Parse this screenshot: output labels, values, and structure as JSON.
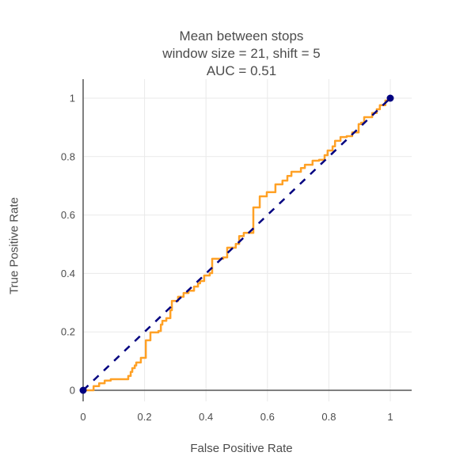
{
  "chart_data": {
    "type": "line",
    "title_lines": [
      "Mean between stops",
      "window size = 21, shift = 5",
      "AUC = 0.51"
    ],
    "xlabel": "False Positive Rate",
    "ylabel": "True Positive Rate",
    "auc": 0.51,
    "xlim": [
      -0.01,
      1.07
    ],
    "ylim": [
      -0.04,
      1.07
    ],
    "grid": true,
    "legend_position": "none",
    "x_ticks": {
      "values": [
        0,
        0.2,
        0.4,
        0.6,
        0.8,
        1
      ],
      "labels": [
        "0",
        "0.2",
        "0.4",
        "0.6",
        "0.8",
        "1"
      ]
    },
    "y_ticks": {
      "values": [
        0,
        0.2,
        0.4,
        0.6,
        0.8,
        1
      ],
      "labels": [
        "0",
        "0.2",
        "0.4",
        "0.6",
        "0.8",
        "1"
      ]
    },
    "series": [
      {
        "name": "ROC curve",
        "type": "step-line",
        "color": "#ffa126",
        "points": [
          [
            0,
            0
          ],
          [
            0.034,
            0.003
          ],
          [
            0.034,
            0.014
          ],
          [
            0.052,
            0.014
          ],
          [
            0.052,
            0.024
          ],
          [
            0.07,
            0.024
          ],
          [
            0.07,
            0.033
          ],
          [
            0.09,
            0.033
          ],
          [
            0.09,
            0.038
          ],
          [
            0.147,
            0.038
          ],
          [
            0.147,
            0.049
          ],
          [
            0.155,
            0.063
          ],
          [
            0.16,
            0.076
          ],
          [
            0.168,
            0.085
          ],
          [
            0.173,
            0.095
          ],
          [
            0.188,
            0.111
          ],
          [
            0.204,
            0.111
          ],
          [
            0.204,
            0.171
          ],
          [
            0.219,
            0.171
          ],
          [
            0.219,
            0.198
          ],
          [
            0.245,
            0.203
          ],
          [
            0.253,
            0.225
          ],
          [
            0.258,
            0.238
          ],
          [
            0.271,
            0.247
          ],
          [
            0.284,
            0.274
          ],
          [
            0.289,
            0.306
          ],
          [
            0.309,
            0.306
          ],
          [
            0.309,
            0.32
          ],
          [
            0.327,
            0.333
          ],
          [
            0.343,
            0.341
          ],
          [
            0.361,
            0.355
          ],
          [
            0.374,
            0.366
          ],
          [
            0.381,
            0.374
          ],
          [
            0.394,
            0.393
          ],
          [
            0.412,
            0.401
          ],
          [
            0.42,
            0.407
          ],
          [
            0.42,
            0.45
          ],
          [
            0.456,
            0.455
          ],
          [
            0.469,
            0.488
          ],
          [
            0.497,
            0.501
          ],
          [
            0.508,
            0.528
          ],
          [
            0.523,
            0.539
          ],
          [
            0.554,
            0.545
          ],
          [
            0.554,
            0.626
          ],
          [
            0.575,
            0.626
          ],
          [
            0.575,
            0.664
          ],
          [
            0.598,
            0.664
          ],
          [
            0.598,
            0.678
          ],
          [
            0.626,
            0.678
          ],
          [
            0.626,
            0.705
          ],
          [
            0.649,
            0.705
          ],
          [
            0.649,
            0.718
          ],
          [
            0.665,
            0.718
          ],
          [
            0.665,
            0.734
          ],
          [
            0.678,
            0.734
          ],
          [
            0.678,
            0.748
          ],
          [
            0.709,
            0.748
          ],
          [
            0.709,
            0.761
          ],
          [
            0.722,
            0.761
          ],
          [
            0.722,
            0.772
          ],
          [
            0.747,
            0.772
          ],
          [
            0.747,
            0.786
          ],
          [
            0.768,
            0.789
          ],
          [
            0.786,
            0.805
          ],
          [
            0.796,
            0.821
          ],
          [
            0.812,
            0.835
          ],
          [
            0.82,
            0.854
          ],
          [
            0.838,
            0.867
          ],
          [
            0.858,
            0.87
          ],
          [
            0.876,
            0.87
          ],
          [
            0.876,
            0.883
          ],
          [
            0.894,
            0.883
          ],
          [
            0.897,
            0.911
          ],
          [
            0.905,
            0.916
          ],
          [
            0.915,
            0.935
          ],
          [
            0.941,
            0.938
          ],
          [
            0.941,
            0.949
          ],
          [
            0.956,
            0.962
          ],
          [
            0.966,
            0.976
          ],
          [
            0.984,
            0.992
          ],
          [
            1,
            1
          ]
        ]
      },
      {
        "name": "Chance diagonal",
        "type": "dashed-line",
        "color": "#000080",
        "points": [
          [
            0,
            0
          ],
          [
            1,
            1
          ]
        ]
      },
      {
        "name": "Endpoint markers",
        "type": "scatter",
        "color": "#000080",
        "marker_size": 4.5,
        "points": [
          [
            0,
            0
          ],
          [
            1,
            1
          ]
        ]
      }
    ]
  },
  "colors": {
    "background": "#ffffff",
    "grid": "#e9e9e9",
    "zeroline": "#565656",
    "text": "#4c4c4c",
    "roc": "#ffa126",
    "reference": "#000080"
  }
}
